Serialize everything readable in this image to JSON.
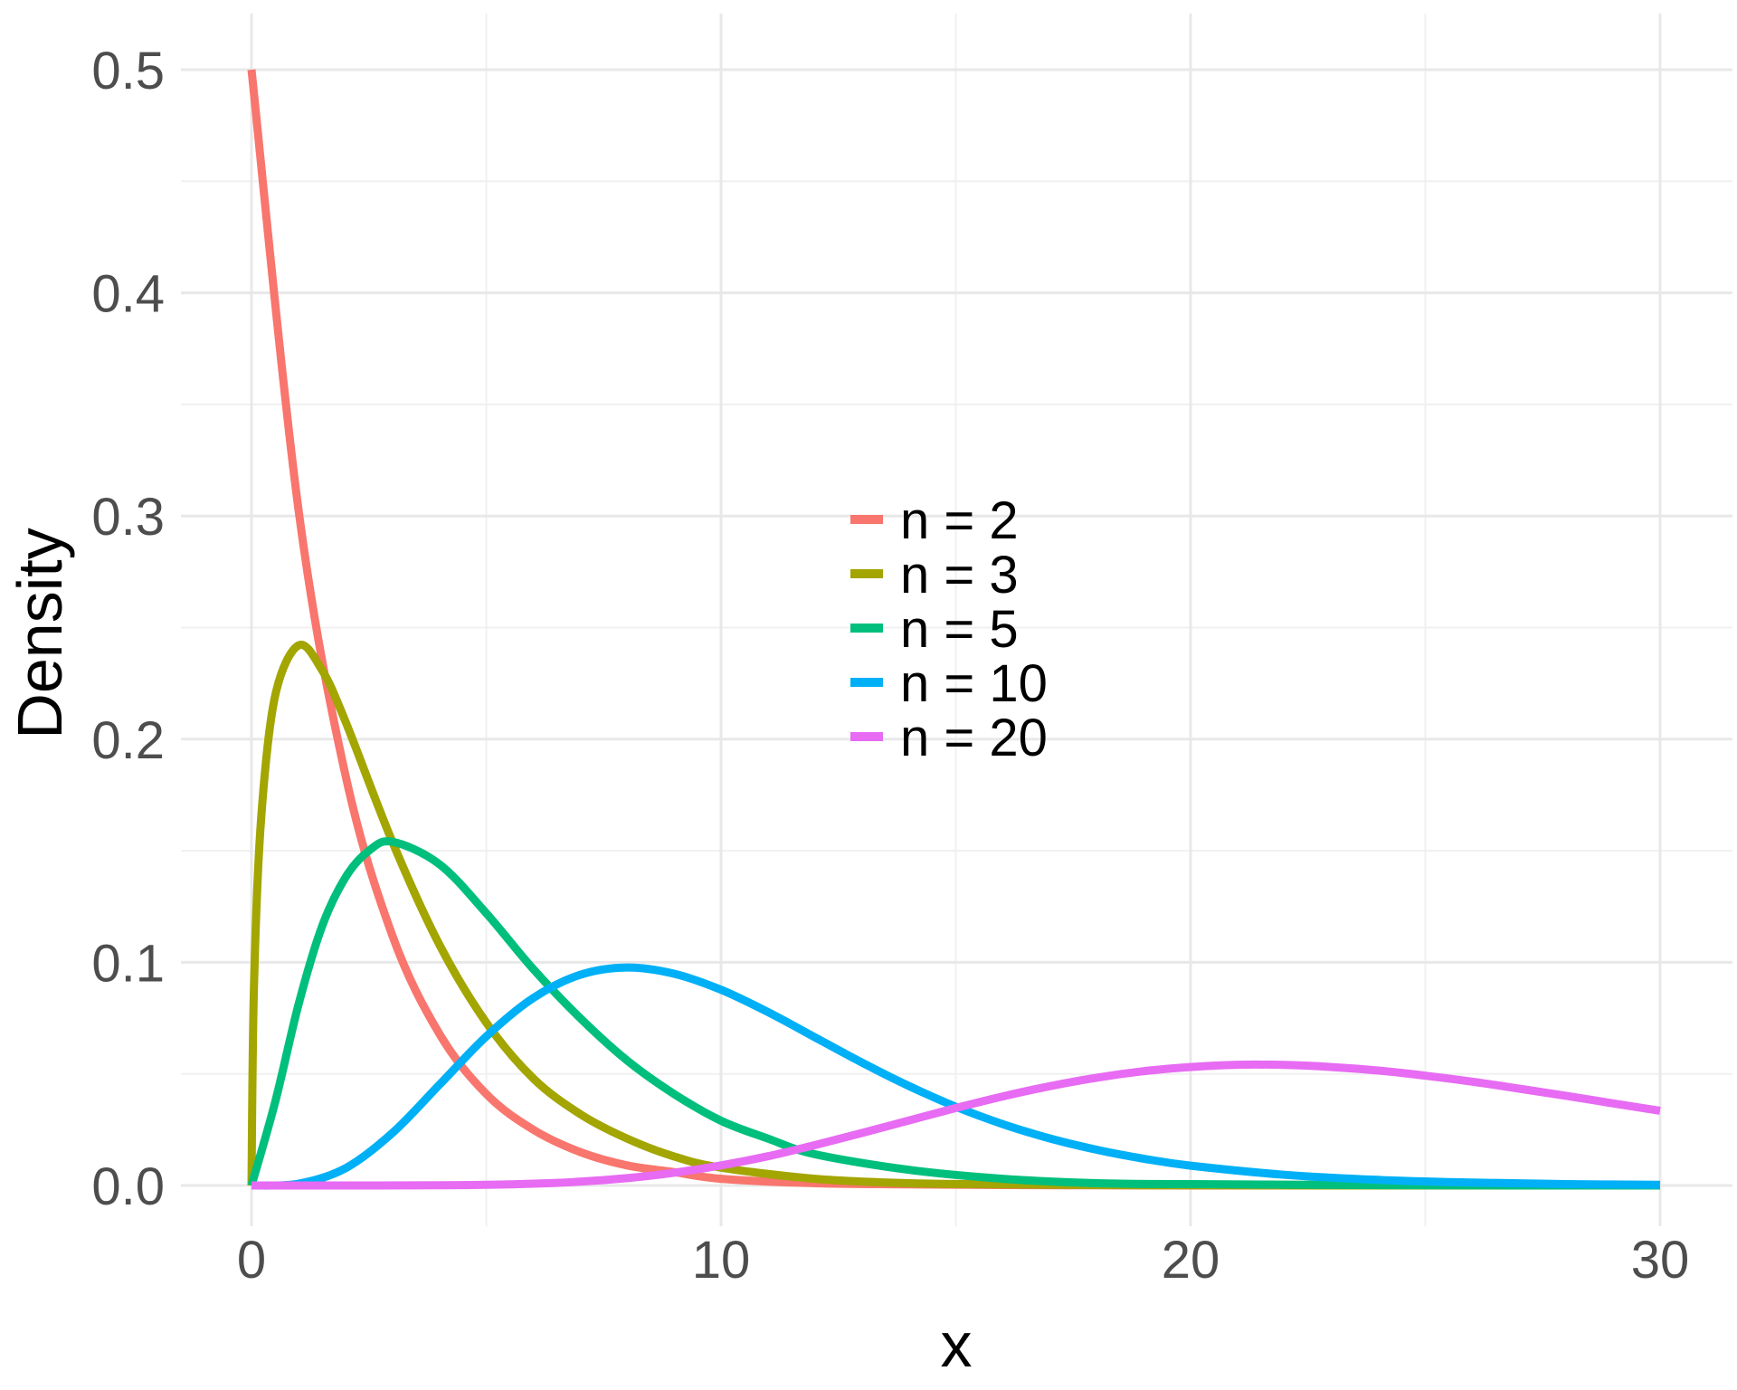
{
  "chart_data": {
    "type": "line",
    "title": "",
    "xlabel": "x",
    "ylabel": "Density",
    "xlim": [
      0,
      30
    ],
    "ylim": [
      0,
      0.5
    ],
    "x_ticks": [
      "0",
      "10",
      "20",
      "30"
    ],
    "y_ticks": [
      "0.0",
      "0.1",
      "0.2",
      "0.3",
      "0.4",
      "0.5"
    ],
    "grid": true,
    "legend_position": "center",
    "series": [
      {
        "name": "n = 2",
        "color": "#F8766D",
        "x": [
          0,
          1,
          2,
          3,
          4,
          5,
          6,
          7,
          8,
          9,
          10,
          12,
          14,
          16,
          18,
          20,
          25,
          30
        ],
        "y": [
          0.5,
          0.303,
          0.184,
          0.112,
          0.068,
          0.041,
          0.025,
          0.015,
          0.009,
          0.006,
          0.003,
          0.001,
          0.0005,
          0.0002,
          0.0001,
          0,
          0,
          0
        ]
      },
      {
        "name": "n = 3",
        "color": "#A3A500",
        "x": [
          0,
          0.05,
          0.2,
          0.5,
          1,
          1.5,
          2,
          3,
          4,
          5,
          6,
          7,
          8,
          9,
          10,
          12,
          14,
          16,
          18,
          20,
          25,
          30
        ],
        "y": [
          0,
          0.087,
          0.163,
          0.219,
          0.242,
          0.231,
          0.208,
          0.154,
          0.108,
          0.073,
          0.048,
          0.032,
          0.021,
          0.013,
          0.008,
          0.003,
          0.001,
          0.0005,
          0.0002,
          0.0001,
          0,
          0
        ]
      },
      {
        "name": "n = 5",
        "color": "#00BF7D",
        "x": [
          0,
          0.5,
          1,
          1.5,
          2,
          2.5,
          3,
          4,
          5,
          6,
          7,
          8,
          9,
          10,
          11,
          12,
          14,
          16,
          18,
          20,
          25,
          30
        ],
        "y": [
          0,
          0.037,
          0.081,
          0.116,
          0.138,
          0.15,
          0.154,
          0.144,
          0.122,
          0.097,
          0.075,
          0.056,
          0.041,
          0.029,
          0.021,
          0.014,
          0.007,
          0.003,
          0.001,
          0.0006,
          0.0001,
          0
        ]
      },
      {
        "name": "n = 10",
        "color": "#00B0F6",
        "x": [
          0,
          1,
          2,
          3,
          4,
          5,
          6,
          7,
          8,
          9,
          10,
          11,
          12,
          13,
          14,
          15,
          16,
          17,
          18,
          19,
          20,
          22,
          24,
          26,
          28,
          30
        ],
        "y": [
          0,
          0.0008,
          0.0077,
          0.0235,
          0.0451,
          0.0668,
          0.084,
          0.0944,
          0.0977,
          0.0949,
          0.0877,
          0.0777,
          0.0664,
          0.0551,
          0.0446,
          0.0353,
          0.0275,
          0.0211,
          0.016,
          0.012,
          0.0089,
          0.0048,
          0.0025,
          0.0013,
          0.0006,
          0.0003
        ]
      },
      {
        "name": "n = 20",
        "color": "#E76BF3",
        "x": [
          0,
          2,
          4,
          5,
          6,
          7,
          8,
          9,
          10,
          11,
          12,
          13,
          14,
          15,
          16,
          17,
          18,
          19,
          20,
          21,
          22,
          23,
          24,
          25,
          26,
          27,
          28,
          29,
          30
        ],
        "y": [
          0,
          0,
          0.0001,
          0.0003,
          0.0008,
          0.0017,
          0.0033,
          0.0057,
          0.009,
          0.0131,
          0.0181,
          0.0235,
          0.0291,
          0.0347,
          0.0399,
          0.0445,
          0.0483,
          0.0512,
          0.0531,
          0.0541,
          0.054,
          0.0531,
          0.0515,
          0.0492,
          0.0465,
          0.0434,
          0.0402,
          0.0368,
          0.0335
        ]
      }
    ]
  }
}
